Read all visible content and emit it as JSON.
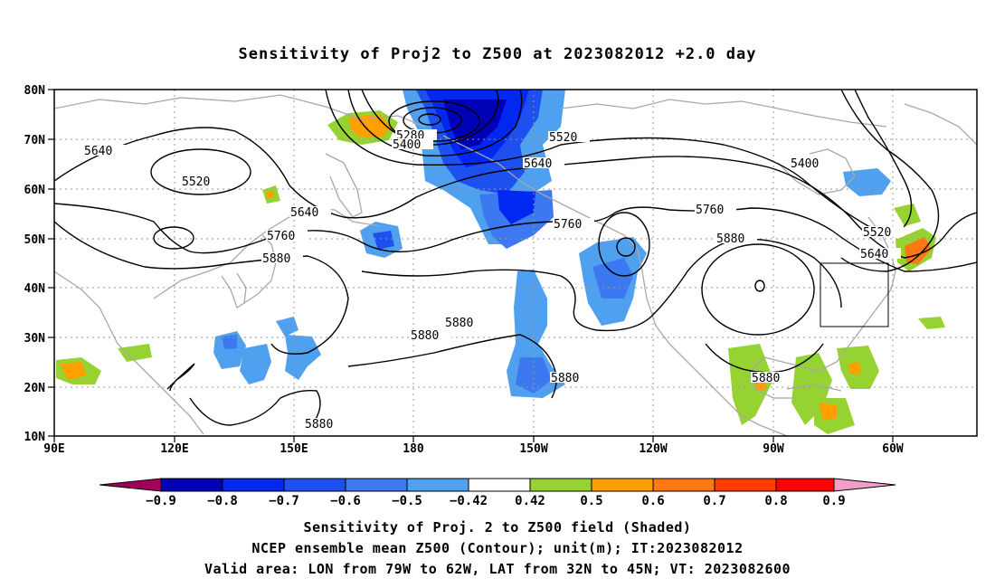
{
  "title": "Sensitivity of Proj2 to Z500 at 2023082012 +2.0 day",
  "map": {
    "lat_labels": [
      "80N",
      "70N",
      "60N",
      "50N",
      "40N",
      "30N",
      "20N",
      "10N"
    ],
    "lon_labels": [
      "90E",
      "120E",
      "150E",
      "180",
      "150W",
      "120W",
      "90W",
      "60W"
    ],
    "lon_range": [
      90,
      322
    ],
    "lat_range": [
      10,
      80
    ],
    "grid": "dotted",
    "colors": {
      "coast": "#a8a8a8",
      "contour": "#000000",
      "grid": "#999999"
    }
  },
  "contours": [
    {
      "label": "5280"
    },
    {
      "label": "5400"
    },
    {
      "label": "5400"
    },
    {
      "label": "5520"
    },
    {
      "label": "5520"
    },
    {
      "label": "5520"
    },
    {
      "label": "5640"
    },
    {
      "label": "5640"
    },
    {
      "label": "5640"
    },
    {
      "label": "5640"
    },
    {
      "label": "5760"
    },
    {
      "label": "5760"
    },
    {
      "label": "5760"
    },
    {
      "label": "5880"
    },
    {
      "label": "5880"
    },
    {
      "label": "5880"
    },
    {
      "label": "5880"
    },
    {
      "label": "5880"
    },
    {
      "label": "5880"
    },
    {
      "label": "5880"
    }
  ],
  "valid_area": {
    "lon_min": -79,
    "lon_max": -62,
    "lat_min": 32,
    "lat_max": 45
  },
  "colorbar": {
    "colors": [
      "#a0005a",
      "#0000b4",
      "#0028f0",
      "#1e50f0",
      "#3c78f0",
      "#50a0f0",
      "#28c8f8",
      "#ffffff",
      "#96d232",
      "#ffa000",
      "#ff7814",
      "#ff3c00",
      "#ff0000",
      "#f0a0c8"
    ],
    "labels": [
      "−0.9",
      "−0.8",
      "−0.7",
      "−0.6",
      "−0.5",
      "−0.42",
      "0.42",
      "0.5",
      "0.6",
      "0.7",
      "0.8",
      "0.9"
    ]
  },
  "captions": [
    "Sensitivity of Proj. 2 to Z500 field (Shaded)",
    "NCEP ensemble mean Z500 (Contour); unit(m); IT:2023082012",
    "Valid area: LON from 79W to 62W, LAT from 32N to 45N; VT: 2023082600"
  ]
}
